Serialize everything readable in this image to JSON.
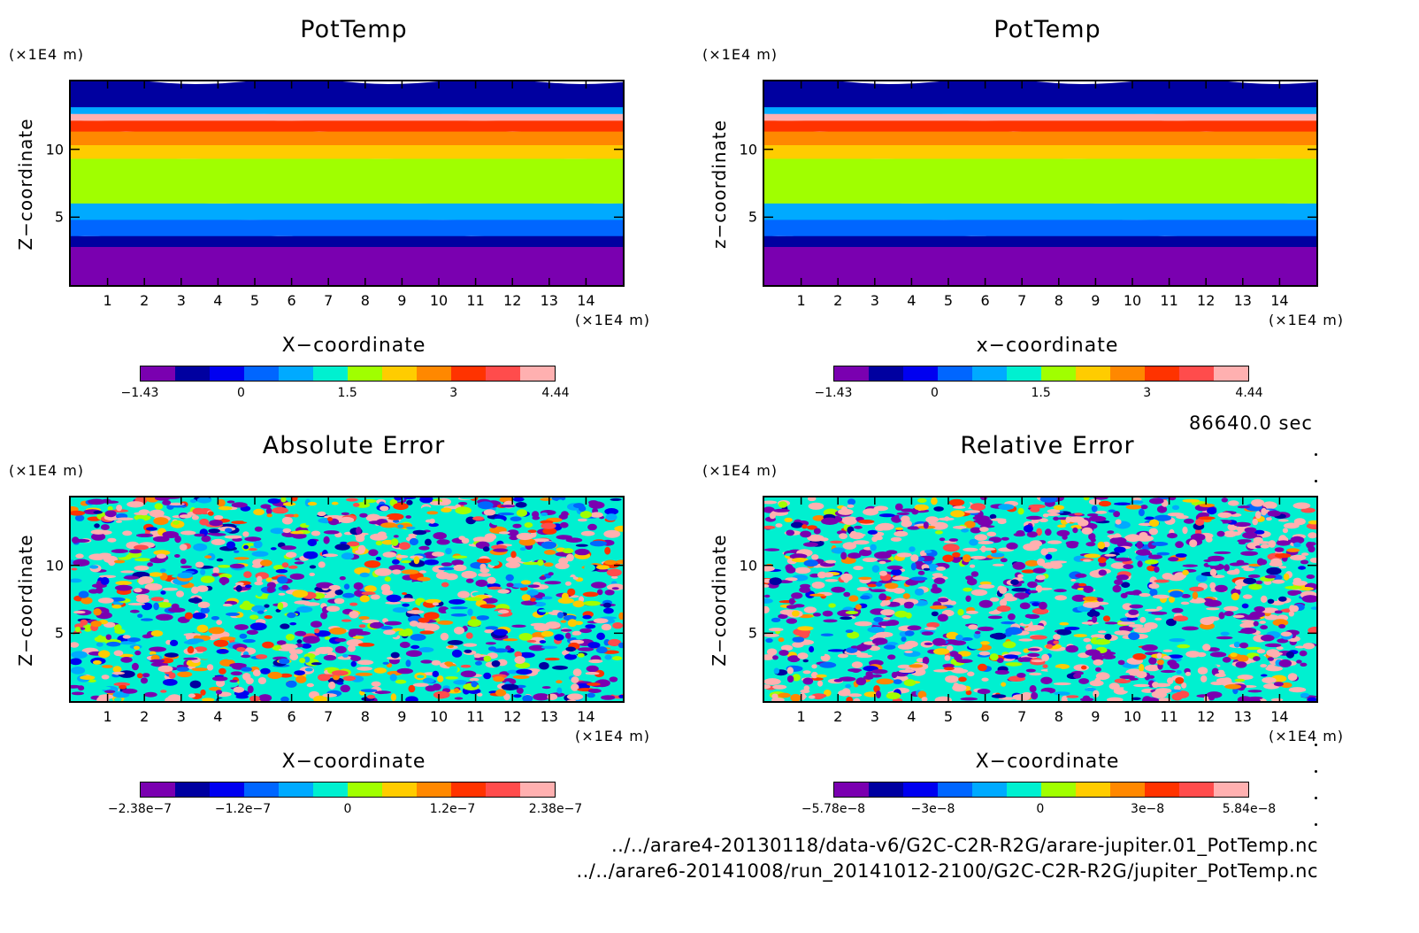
{
  "time_label": "86640.0 sec",
  "files": [
    "../../arare4-20130118/data-v6/G2C-C2R-R2G/arare-jupiter.01_PotTemp.nc",
    "../../arare6-20141008/run_20141012-2100/G2C-C2R-R2G/jupiter_PotTemp.nc"
  ],
  "colorbar_colors": [
    "#7a00b0",
    "#0000a0",
    "#0000f0",
    "#0066ff",
    "#00aaff",
    "#00f0d0",
    "#a0ff00",
    "#ffcc00",
    "#ff8800",
    "#ff3300",
    "#ff4c4c",
    "#ffb0b0"
  ],
  "chart_data": [
    {
      "type": "heatmap",
      "title": "PotTemp",
      "xlabel": "X−coordinate",
      "ylabel": "Z−coordinate",
      "x_unit": "(×1E4 m)",
      "y_unit": "(×1E4 m)",
      "xlim": [
        0,
        15
      ],
      "ylim": [
        0,
        15
      ],
      "xticks": [
        "1",
        "2",
        "3",
        "4",
        "5",
        "6",
        "7",
        "8",
        "9",
        "10",
        "11",
        "12",
        "13",
        "14"
      ],
      "yticks": [
        "5",
        "10"
      ],
      "colorbar_range": [
        -1.43,
        4.44
      ],
      "colorbar_ticks": [
        "−1.43",
        "0",
        "1.5",
        "3",
        "4.44"
      ],
      "colorbar_tick_values": [
        -1.43,
        0,
        1.5,
        3,
        4.44
      ],
      "field_pattern": "layered",
      "z_levels": [
        {
          "z_max": 3.0,
          "level": 0
        },
        {
          "z_max": 3.8,
          "level": 1
        },
        {
          "z_max": 5.0,
          "level": 3
        },
        {
          "z_max": 6.2,
          "level": 4
        },
        {
          "z_max": 9.5,
          "level": 6
        },
        {
          "z_max": 10.5,
          "level": 7
        },
        {
          "z_max": 11.5,
          "level": 8
        },
        {
          "z_max": 12.3,
          "level": 9
        },
        {
          "z_max": 12.8,
          "level": 11
        },
        {
          "z_max": 13.3,
          "level": 4
        },
        {
          "z_max": 15.0,
          "level": 1
        }
      ]
    },
    {
      "type": "heatmap",
      "title": "PotTemp",
      "xlabel": "x−coordinate",
      "ylabel": "z−coordinate",
      "x_unit": "(×1E4 m)",
      "y_unit": "(×1E4 m)",
      "xlim": [
        0,
        15
      ],
      "ylim": [
        0,
        15
      ],
      "xticks": [
        "1",
        "2",
        "3",
        "4",
        "5",
        "6",
        "7",
        "8",
        "9",
        "10",
        "11",
        "12",
        "13",
        "14"
      ],
      "yticks": [
        "5",
        "10"
      ],
      "colorbar_range": [
        -1.43,
        4.44
      ],
      "colorbar_ticks": [
        "−1.43",
        "0",
        "1.5",
        "3",
        "4.44"
      ],
      "colorbar_tick_values": [
        -1.43,
        0,
        1.5,
        3,
        4.44
      ],
      "field_pattern": "layered",
      "z_levels": [
        {
          "z_max": 3.0,
          "level": 0
        },
        {
          "z_max": 3.8,
          "level": 1
        },
        {
          "z_max": 5.0,
          "level": 3
        },
        {
          "z_max": 6.2,
          "level": 4
        },
        {
          "z_max": 9.5,
          "level": 6
        },
        {
          "z_max": 10.5,
          "level": 7
        },
        {
          "z_max": 11.5,
          "level": 8
        },
        {
          "z_max": 12.3,
          "level": 9
        },
        {
          "z_max": 12.8,
          "level": 11
        },
        {
          "z_max": 13.3,
          "level": 4
        },
        {
          "z_max": 15.0,
          "level": 1
        }
      ]
    },
    {
      "type": "heatmap",
      "title": "Absolute Error",
      "xlabel": "X−coordinate",
      "ylabel": "Z−coordinate",
      "x_unit": "(×1E4 m)",
      "y_unit": "(×1E4 m)",
      "xlim": [
        0,
        15
      ],
      "ylim": [
        0,
        15
      ],
      "xticks": [
        "1",
        "2",
        "3",
        "4",
        "5",
        "6",
        "7",
        "8",
        "9",
        "10",
        "11",
        "12",
        "13",
        "14"
      ],
      "yticks": [
        "5",
        "10"
      ],
      "colorbar_range": [
        -2.38e-07,
        2.38e-07
      ],
      "colorbar_ticks": [
        "−2.38e−7",
        "−1.2e−7",
        "0",
        "1.2e−7",
        "2.38e−7"
      ],
      "colorbar_tick_values": [
        -2.38e-07,
        -1.2e-07,
        0,
        1.2e-07,
        2.38e-07
      ],
      "field_pattern": "noise",
      "noise_spread": 0.45,
      "strong_band_z": [
        11.8,
        12.4
      ]
    },
    {
      "type": "heatmap",
      "title": "Relative Error",
      "xlabel": "X−coordinate",
      "ylabel": "Z−coordinate",
      "x_unit": "(×1E4 m)",
      "y_unit": "(×1E4 m)",
      "xlim": [
        0,
        15
      ],
      "ylim": [
        0,
        15
      ],
      "xticks": [
        "1",
        "2",
        "3",
        "4",
        "5",
        "6",
        "7",
        "8",
        "9",
        "10",
        "11",
        "12",
        "13",
        "14"
      ],
      "yticks": [
        "5",
        "10"
      ],
      "colorbar_range": [
        -5.78e-08,
        5.84e-08
      ],
      "colorbar_ticks": [
        "−5.78e−8",
        "−3e−8",
        "0",
        "3e−8",
        "5.84e−8"
      ],
      "colorbar_tick_values": [
        -5.78e-08,
        -3e-08,
        0,
        3e-08,
        5.84e-08
      ],
      "field_pattern": "noise",
      "noise_spread": 1.0,
      "strong_band_z": [
        11.8,
        12.4
      ]
    }
  ]
}
